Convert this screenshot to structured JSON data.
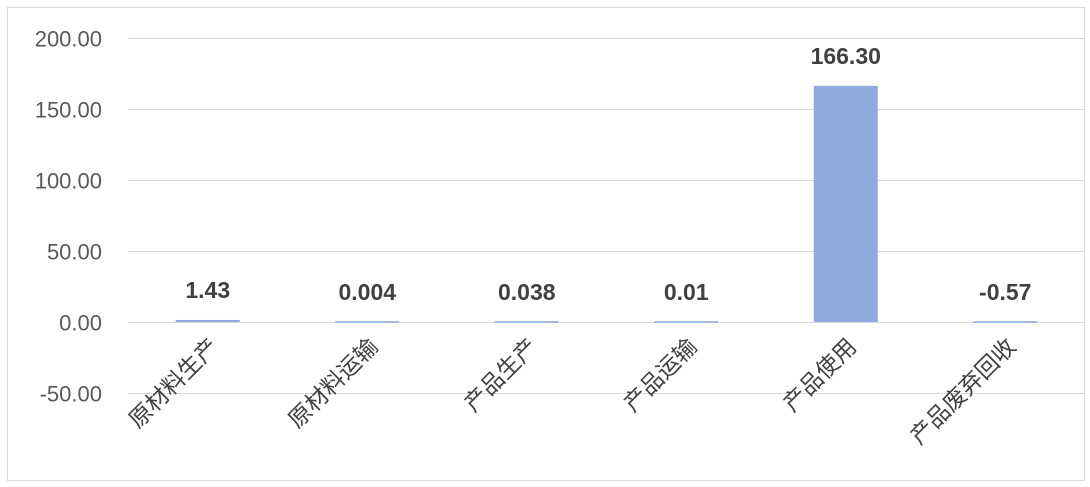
{
  "chart_data": {
    "type": "bar",
    "categories": [
      "原材料生产",
      "原材料运输",
      "产品生产",
      "产品运输",
      "产品使用",
      "产品废弃回收"
    ],
    "values": [
      1.43,
      0.004,
      0.038,
      0.01,
      166.3,
      -0.57
    ],
    "data_labels": [
      "1.43",
      "0.004",
      "0.038",
      "0.01",
      "166.30",
      "-0.57"
    ],
    "yticks": [
      200,
      150,
      100,
      50,
      0,
      -50
    ],
    "ytick_labels": [
      "200.00",
      "150.00",
      "100.00",
      "50.00",
      "0.00",
      "-50.00"
    ],
    "ylim": [
      -50,
      200
    ],
    "title": "",
    "xlabel": "",
    "ylabel": "",
    "grid": true,
    "legend": "none",
    "bar_color": "#8faadc"
  }
}
